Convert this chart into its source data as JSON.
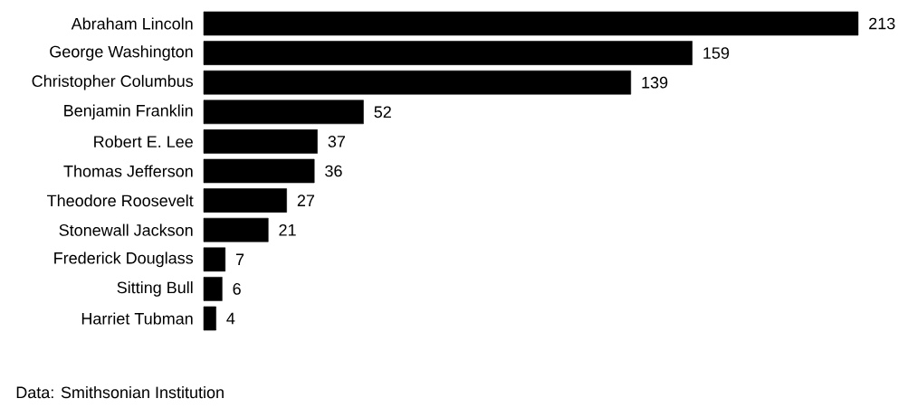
{
  "chart_data": {
    "type": "bar",
    "orientation": "horizontal",
    "categories": [
      "Abraham Lincoln",
      "George Washington",
      "Christopher Columbus",
      "Benjamin Franklin",
      "Robert E. Lee",
      "Thomas Jefferson",
      "Theodore Roosevelt",
      "Stonewall Jackson",
      "Frederick Douglass",
      "Sitting Bull",
      "Harriet Tubman"
    ],
    "values": [
      213,
      159,
      139,
      52,
      37,
      36,
      27,
      21,
      7,
      6,
      4
    ],
    "color": "#000000",
    "data_labels": true,
    "annotations": [
      "Data: Smithsonian Institution"
    ]
  }
}
